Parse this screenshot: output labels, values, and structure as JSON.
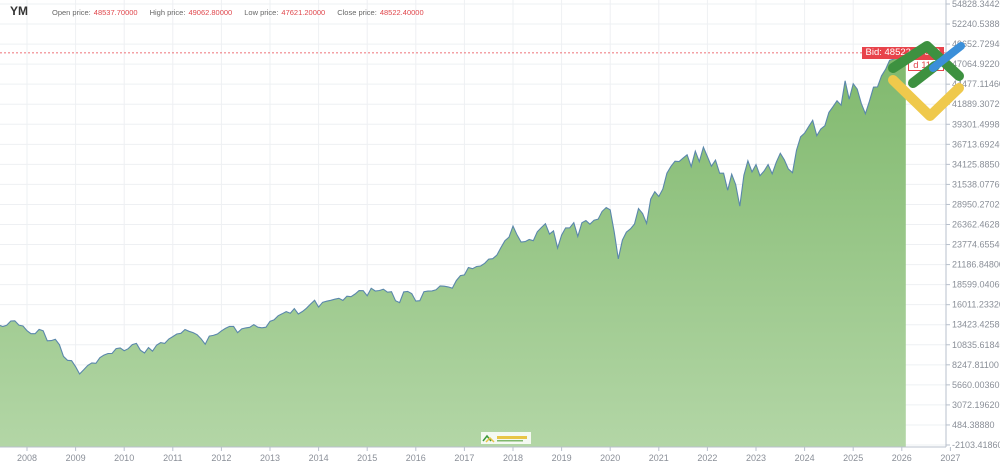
{
  "header": {
    "symbol": "YM",
    "open_label": "Open price:",
    "open_value": "48537.70000",
    "high_label": "High price:",
    "high_value": "49062.80000",
    "low_label": "Low price:",
    "low_value": "47621.20000",
    "close_label": "Close price:",
    "close_value": "48522.40000"
  },
  "price_tag": {
    "bid_text": "Bid: 48522.40000",
    "countdown_text": "d 11m"
  },
  "colors": {
    "fill_top": "#7fb86c",
    "fill_bottom": "#b3d6a6",
    "line": "#5a87ab",
    "price_line": "#e8434b",
    "accent_red": "#e0474c"
  },
  "logo": {
    "name": "LiteFinance"
  },
  "chart_data": {
    "type": "area",
    "title": "",
    "xlabel": "",
    "ylabel": "",
    "grid": true,
    "current_price": 48522.4,
    "y_ticks": [
      "54828.34420",
      "52240.53880",
      "49652.72940",
      "47064.92200",
      "44477.11460",
      "41889.30720",
      "39301.49980",
      "36713.69240",
      "34125.88500",
      "31538.07760",
      "28950.27020",
      "26362.46280",
      "23774.65540",
      "21186.84800",
      "18599.04060",
      "16011.23320",
      "13423.42580",
      "10835.61840",
      "8247.81100",
      "5660.00360",
      "3072.19620",
      "484.38880",
      "-2103.41860"
    ],
    "ylim": [
      -2103.4186,
      54828.3442
    ],
    "x_ticks": [
      "2008",
      "2009",
      "2010",
      "2011",
      "2012",
      "2013",
      "2014",
      "2015",
      "2016",
      "2017",
      "2018",
      "2019",
      "2020",
      "2021",
      "2022",
      "2023",
      "2024",
      "2025",
      "2026",
      "2027"
    ],
    "start": "2007-06",
    "values": [
      13400,
      13200,
      13350,
      13900,
      13930,
      13370,
      13260,
      12650,
      12270,
      12260,
      12820,
      12640,
      11350,
      11380,
      11540,
      10850,
      9330,
      8830,
      8780,
      8000,
      7060,
      7610,
      8170,
      8500,
      8450,
      9170,
      9500,
      9710,
      9710,
      10340,
      10430,
      10070,
      10330,
      10860,
      11010,
      10140,
      9770,
      10470,
      10010,
      10790,
      11120,
      11010,
      11580,
      11890,
      12230,
      12320,
      12810,
      12570,
      12410,
      12140,
      11610,
      10910,
      11960,
      12050,
      12220,
      12630,
      12950,
      13210,
      13210,
      12390,
      12880,
      13010,
      13090,
      13440,
      13100,
      13030,
      13100,
      13860,
      14050,
      14580,
      14840,
      15120,
      14910,
      15500,
      14810,
      15130,
      15550,
      16090,
      16580,
      15700,
      16320,
      16460,
      16580,
      16720,
      16830,
      16560,
      17100,
      17040,
      17390,
      17830,
      17820,
      17160,
      18130,
      17780,
      17840,
      18010,
      17620,
      17690,
      16530,
      16280,
      17660,
      17720,
      17430,
      16470,
      16520,
      17690,
      17770,
      17790,
      17930,
      18430,
      18400,
      18310,
      18140,
      19120,
      19760,
      19860,
      20810,
      20660,
      20940,
      21010,
      21350,
      21890,
      21950,
      22400,
      23380,
      24270,
      24720,
      26150,
      25030,
      24100,
      24160,
      24420,
      24270,
      25420,
      25960,
      26460,
      25120,
      25540,
      23330,
      25000,
      25920,
      25930,
      26590,
      24820,
      26600,
      26860,
      26400,
      26920,
      27050,
      28050,
      28540,
      28260,
      25410,
      21920,
      24350,
      25380,
      25810,
      26430,
      28430,
      27780,
      26500,
      29640,
      30600,
      29980,
      30930,
      32980,
      33870,
      34530,
      34500,
      34940,
      35360,
      33840,
      35820,
      34480,
      36340,
      35130,
      33890,
      34680,
      32980,
      32990,
      30780,
      32850,
      31510,
      28730,
      32730,
      34590,
      33150,
      34090,
      32660,
      33270,
      34100,
      32910,
      34410,
      35560,
      34720,
      33510,
      33050,
      35950,
      37690,
      38150,
      38990,
      39810,
      37820,
      38690,
      39120,
      40840,
      41560,
      42330,
      41760,
      44910,
      42540,
      44540,
      43840,
      42000,
      40670,
      42270,
      44090,
      44130,
      45540,
      46400,
      47560,
      47720,
      48060,
      48890,
      48522
    ]
  }
}
